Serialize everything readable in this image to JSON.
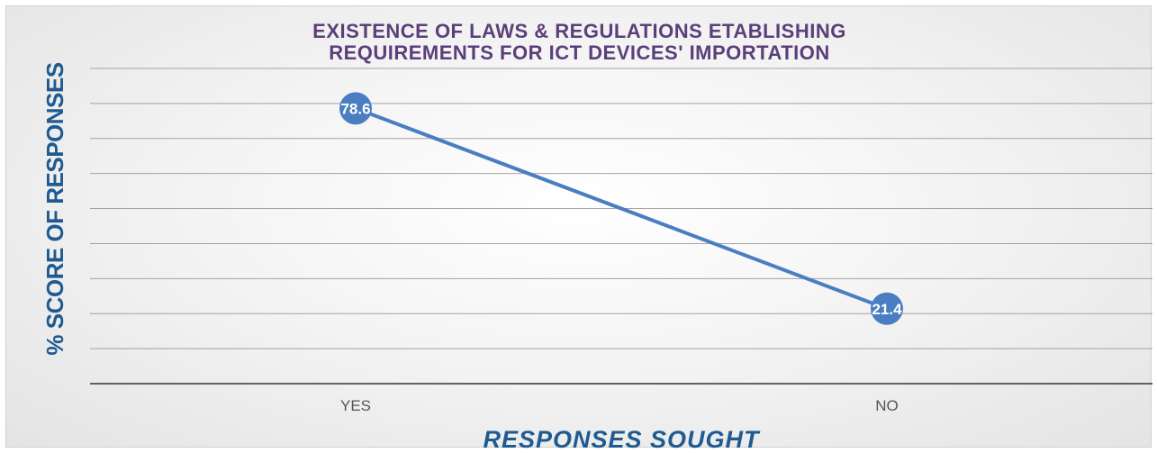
{
  "chart_data": {
    "type": "line",
    "title_lines": [
      "EXISTENCE OF LAWS & REGULATIONS ETABLISHING",
      "REQUIREMENTS FOR ICT DEVICES' IMPORTATION"
    ],
    "xlabel": "RESPONSES SOUGHT",
    "ylabel": "% SCORE OF RESPONSES",
    "categories": [
      "YES",
      "NO"
    ],
    "series": [
      {
        "values": [
          78.6,
          21.4
        ],
        "data_labels": [
          "78.6",
          "21.4"
        ]
      }
    ],
    "ylim": [
      0,
      90
    ],
    "grid_step": 10,
    "grid": true,
    "colors": {
      "line": "#4a7ec2",
      "marker": "#4a7ec2",
      "title": "#5b3f7a",
      "axis_title": "#1f5a91",
      "grid": "#888888",
      "axis": "#333333"
    }
  }
}
